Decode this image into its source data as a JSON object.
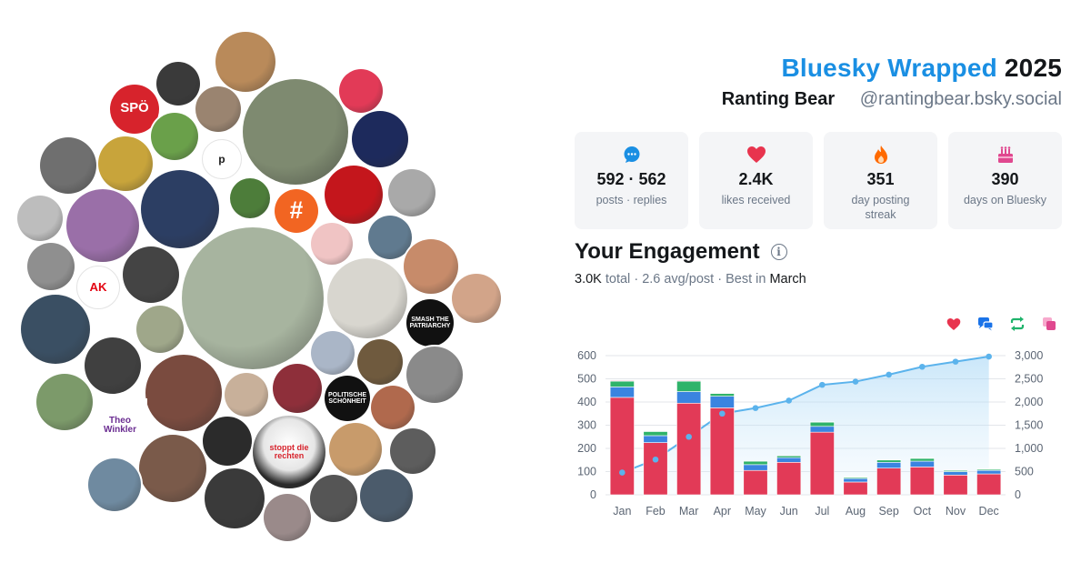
{
  "header": {
    "brand": "Bluesky Wrapped",
    "year": "2025",
    "display_name": "Ranting Bear",
    "handle": "@rantingbear.bsky.social"
  },
  "stats": [
    {
      "icon": "chat-bubble-icon",
      "value": "592 · 562",
      "label": "posts · replies",
      "color": "#1a8fe3"
    },
    {
      "icon": "heart-icon",
      "value": "2.4K",
      "label": "likes received",
      "color": "#e8344e"
    },
    {
      "icon": "flame-icon",
      "value": "351",
      "label": "day posting streak",
      "color": "#ff6a00"
    },
    {
      "icon": "cake-icon",
      "value": "390",
      "label": "days on Bluesky",
      "color": "#e0488f"
    }
  ],
  "engagement": {
    "title": "Your Engagement",
    "total": "3.0K",
    "total_word": "total",
    "avg": "2.6 avg/post",
    "best_prefix": "Best in",
    "best_month": "March"
  },
  "legend": [
    {
      "icon": "heart-icon",
      "color": "#e8344e"
    },
    {
      "icon": "reply-icon",
      "color": "#1a73e8"
    },
    {
      "icon": "repost-icon",
      "color": "#1fb36b"
    },
    {
      "icon": "quote-icon",
      "color": "#e0488f"
    }
  ],
  "avatars": [
    {
      "name": "avatar-spoe",
      "text": "SPÖ",
      "color": "#d7232c"
    },
    {
      "name": "avatar-p-logo",
      "text": "p",
      "color": "#ffffff"
    },
    {
      "name": "avatar-hashtag",
      "text": "#",
      "color": "#f26522"
    },
    {
      "name": "avatar-ak",
      "text": "AK",
      "color": "#ffffff"
    },
    {
      "name": "avatar-smash-patriarchy",
      "text": "SMASH THE PATRIARCHY",
      "color": "#111111"
    },
    {
      "name": "avatar-politische-schoenheit",
      "text": "POLITISCHE SCHÖNHEIT",
      "color": "#111111"
    },
    {
      "name": "avatar-theo-winkler",
      "text": "Theo Winkler",
      "color": "#ffffff"
    },
    {
      "name": "avatar-stoppt-die-rechten",
      "text": "stoppt die rechten",
      "color": "#1c1c1c"
    }
  ],
  "chart_data": {
    "type": "bar",
    "categories": [
      "Jan",
      "Feb",
      "Mar",
      "Apr",
      "May",
      "Jun",
      "Jul",
      "Aug",
      "Sep",
      "Oct",
      "Nov",
      "Dec"
    ],
    "stacked": true,
    "series": [
      {
        "icon": "heart-icon",
        "color": "#e23a57",
        "values": [
          420,
          225,
          395,
          375,
          105,
          140,
          270,
          55,
          115,
          120,
          85,
          90
        ]
      },
      {
        "icon": "reply-icon",
        "color": "#3a84e0",
        "values": [
          45,
          30,
          50,
          50,
          25,
          20,
          25,
          15,
          25,
          25,
          15,
          15
        ]
      },
      {
        "icon": "repost-icon",
        "color": "#2fb36a",
        "values": [
          25,
          18,
          45,
          12,
          15,
          8,
          18,
          5,
          10,
          12,
          5,
          5
        ]
      },
      {
        "icon": "quote-icon",
        "color": "#e0488f",
        "values": [
          3,
          2,
          3,
          2,
          1,
          1,
          2,
          1,
          1,
          1,
          1,
          1
        ]
      }
    ],
    "cumulative": {
      "color": "#5bb3ec",
      "values": [
        480,
        760,
        1250,
        1750,
        1870,
        2030,
        2370,
        2440,
        2590,
        2760,
        2870,
        2980
      ]
    },
    "y_left": {
      "min": 0,
      "max": 600,
      "ticks": [
        "0",
        "100",
        "200",
        "300",
        "400",
        "500",
        "600"
      ]
    },
    "y_right": {
      "min": 0,
      "max": 3000,
      "ticks": [
        "0",
        "500",
        "1,000",
        "1,500",
        "2,000",
        "2,500",
        "3,000"
      ]
    },
    "grid": true
  }
}
